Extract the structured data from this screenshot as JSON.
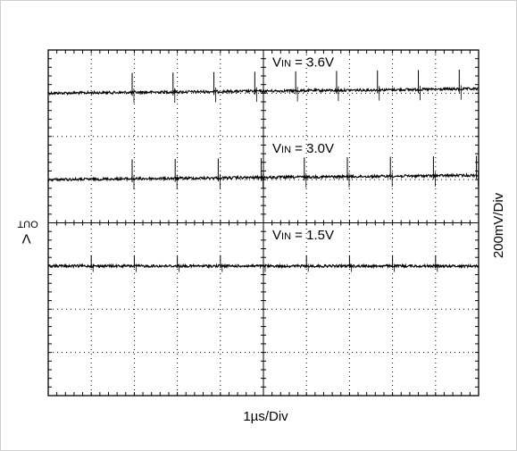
{
  "chart_data": {
    "type": "line",
    "title": "",
    "ylabel_main": "V",
    "ylabel_sub": "OUT",
    "y_scale_label": "200mV/Div",
    "x_scale_label": "1µs/Div",
    "divisions": {
      "x": 10,
      "y": 8
    },
    "grid": true,
    "series": [
      {
        "label_main": "V",
        "label_sub": "IN",
        "label_rest": " = 3.6V",
        "level_div_from_top": 1.0,
        "drift_div": -0.1,
        "spike_count": 9,
        "spike_period_div": 0.95,
        "spike_phase_div": 1.95,
        "spike_height_div": 0.45,
        "noise_div": 0.03
      },
      {
        "label_main": "V",
        "label_sub": "IN",
        "label_rest": " = 3.0V",
        "level_div_from_top": 3.0,
        "drift_div": -0.1,
        "spike_count": 9,
        "spike_period_div": 1.0,
        "spike_phase_div": 1.95,
        "spike_height_div": 0.45,
        "noise_div": 0.03
      },
      {
        "label_main": "V",
        "label_sub": "IN",
        "label_rest": " = 1.5V",
        "level_div_from_top": 5.0,
        "drift_div": 0.0,
        "spike_count": 9,
        "spike_period_div": 1.0,
        "spike_phase_div": 1.0,
        "spike_height_div": 0.25,
        "noise_div": 0.03
      }
    ]
  }
}
